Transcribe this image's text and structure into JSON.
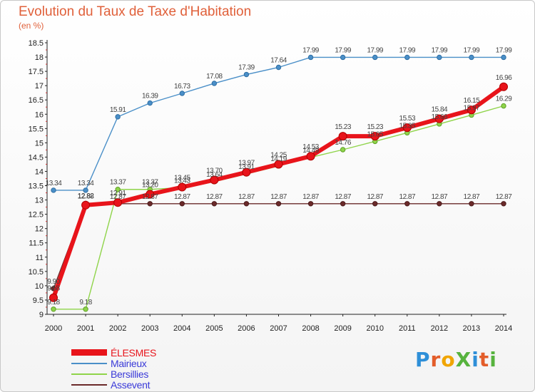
{
  "title": "Evolution du Taux de Taxe d'Habitation",
  "unit_label": "(en %)",
  "logo": {
    "text": "ProXiti",
    "letter_colors": [
      "#2e8fd8",
      "#e35d2a",
      "#f0a500",
      "#57b33e",
      "#2e8fd8",
      "#e35d2a",
      "#57b33e"
    ]
  },
  "chart_data": {
    "type": "line",
    "title": "Evolution du Taux de Taxe d'Habitation",
    "ylabel": "(en %)",
    "xlabel": "",
    "x": [
      "2000",
      "2001",
      "2002",
      "2003",
      "2004",
      "2005",
      "2006",
      "2007",
      "2008",
      "2009",
      "2010",
      "2011",
      "2012",
      "2013",
      "2014"
    ],
    "yticks": [
      "9",
      "9.5",
      "10",
      "10.5",
      "11",
      "11.5",
      "12",
      "12.5",
      "13",
      "13.5",
      "14",
      "14.5",
      "15",
      "15.5",
      "16",
      "16.5",
      "17",
      "17.5",
      "18",
      "18.5"
    ],
    "ylim": [
      9,
      18.5
    ],
    "grid": false,
    "legend_position": "bottom-left",
    "series": [
      {
        "name": "ÉLESMES",
        "color": "#e8141b",
        "values": [
          9.58,
          12.82,
          12.91,
          13.2,
          13.45,
          13.7,
          13.97,
          14.25,
          14.53,
          15.23,
          15.23,
          15.53,
          15.84,
          16.15,
          16.96
        ],
        "labels": [
          "9.58",
          "12.82",
          "12.91",
          "13.20",
          "13.45",
          "13.70",
          "13.97",
          "14.25",
          "14.53",
          "15.23",
          "15.23",
          "15.53",
          "15.84",
          "16.15",
          "16.96"
        ]
      },
      {
        "name": "Mairieux",
        "color": "#4a8fc8",
        "values": [
          13.34,
          13.34,
          15.91,
          16.39,
          16.73,
          17.08,
          17.39,
          17.64,
          17.99,
          17.99,
          17.99,
          17.99,
          17.99,
          17.99,
          17.99
        ],
        "labels": [
          "13.34",
          "13.34",
          "15.91",
          "16.39",
          "16.73",
          "17.08",
          "17.39",
          "17.64",
          "17.99",
          "17.99",
          "17.99",
          "17.99",
          "17.99",
          "17.99",
          "17.99"
        ]
      },
      {
        "name": "Bersillies",
        "color": "#8fd44a",
        "values": [
          9.18,
          9.18,
          13.37,
          13.37,
          13.43,
          13.64,
          13.91,
          14.19,
          14.49,
          14.76,
          15.05,
          15.35,
          15.66,
          15.97,
          16.29
        ],
        "labels": [
          "9.18",
          "9.18",
          "13.37",
          "13.37",
          "13.43",
          "13.64",
          "13.91",
          "14.19",
          "14.49",
          "14.76",
          "15.05",
          "15.35",
          "15.66",
          "15.97",
          "16.29"
        ]
      },
      {
        "name": "Assevent",
        "color": "#6b2a2a",
        "values": [
          9.9,
          12.88,
          12.87,
          12.87,
          12.87,
          12.87,
          12.87,
          12.87,
          12.87,
          12.87,
          12.87,
          12.87,
          12.87,
          12.87,
          12.87
        ],
        "labels": [
          "9.90",
          "12.88",
          "12.87",
          "12.87",
          "12.87",
          "12.87",
          "12.87",
          "12.87",
          "12.87",
          "12.87",
          "12.87",
          "12.87",
          "12.87",
          "12.87",
          "12.87"
        ]
      }
    ]
  }
}
